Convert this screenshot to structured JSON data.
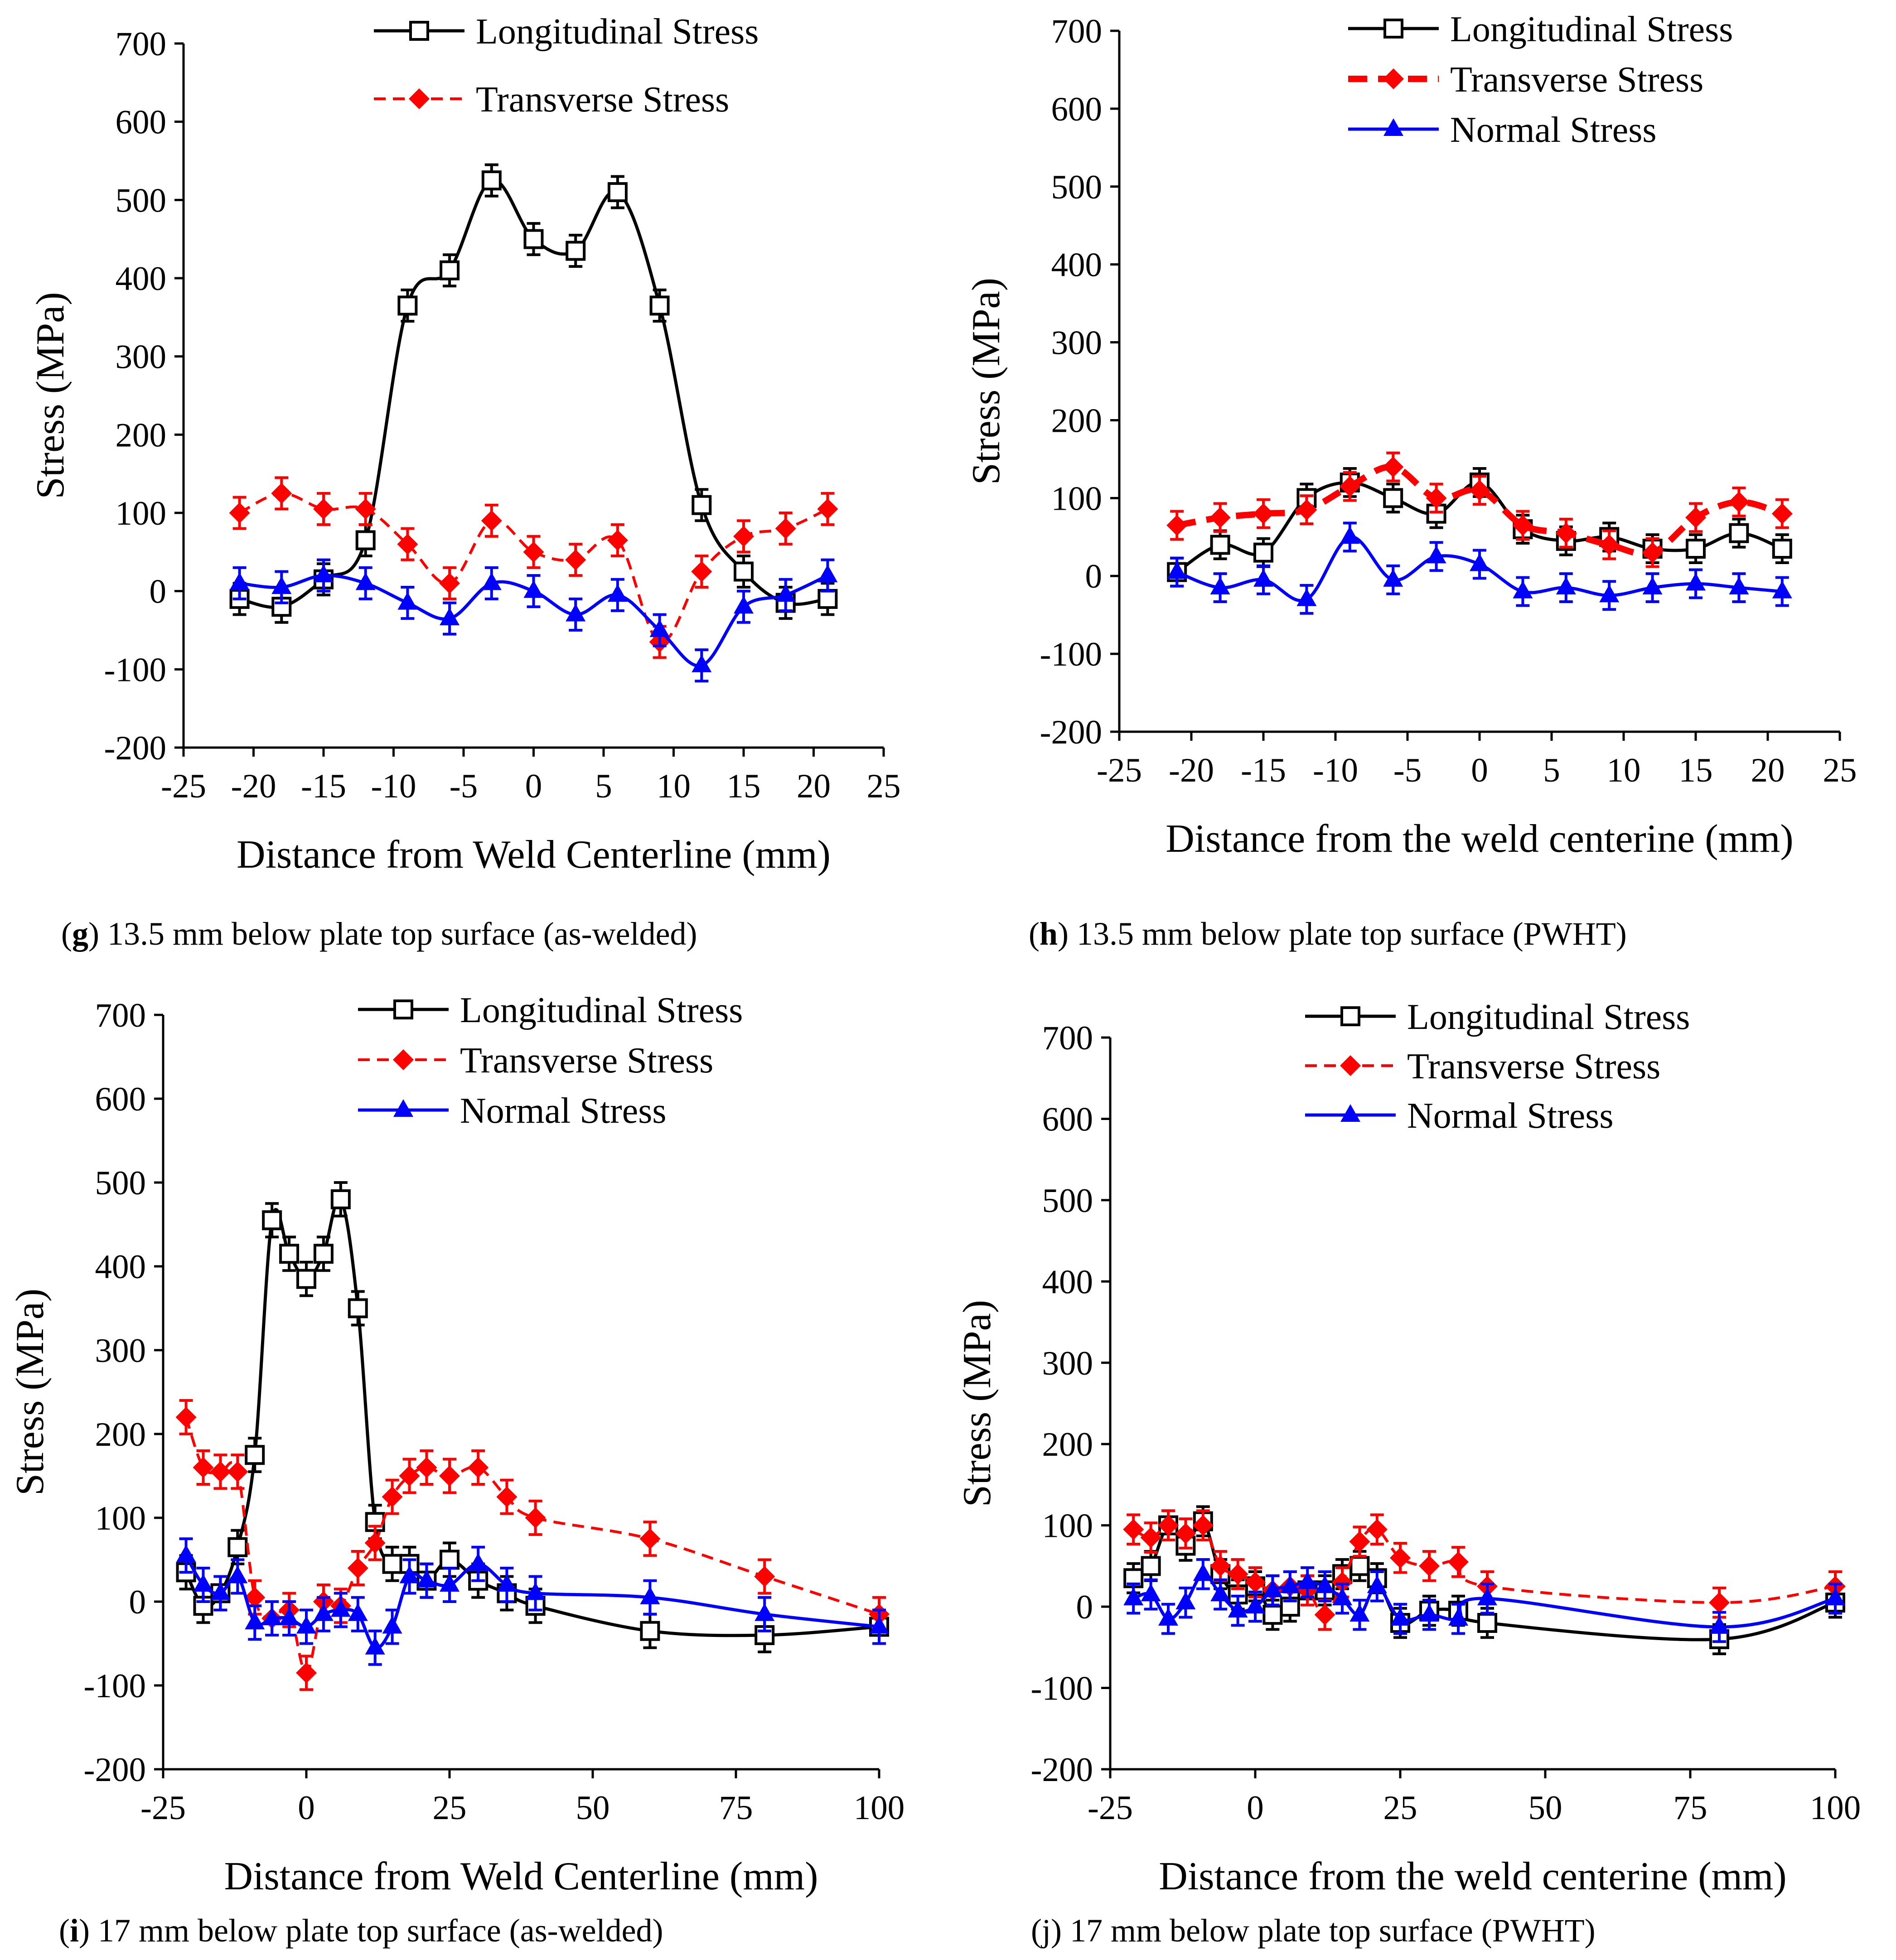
{
  "colors": {
    "longitudinal": "#000000",
    "transverse": "#ff0000",
    "normal": "#0000ff",
    "axis": "#000000",
    "background": "#ffffff"
  },
  "chart_data": [
    {
      "id": "g",
      "type": "line",
      "caption_letter": "g",
      "caption_text": ") 13.5 mm below plate top surface (as-welded)",
      "xlabel": "Distance from Weld Centerline (mm)",
      "ylabel": "Stress (MPa)",
      "xlim": [
        -25,
        25
      ],
      "ylim": [
        -200,
        700
      ],
      "xticks": [
        -25,
        -20,
        -15,
        -10,
        -5,
        0,
        5,
        10,
        15,
        20,
        25
      ],
      "yticks": [
        -200,
        -100,
        0,
        100,
        200,
        300,
        400,
        500,
        600,
        700
      ],
      "legend_position": "top-right",
      "series": [
        {
          "name": "Longitudinal Stress",
          "style": "longitudinal",
          "x": [
            -21,
            -18,
            -15,
            -12,
            -9,
            -6,
            -3,
            0,
            3,
            6,
            9,
            12,
            15,
            18,
            21
          ],
          "y": [
            -10,
            -20,
            15,
            65,
            365,
            410,
            525,
            450,
            435,
            510,
            365,
            110,
            25,
            -15,
            -10
          ],
          "err": 20
        },
        {
          "name": "Transverse Stress",
          "style": "transverse",
          "x": [
            -21,
            -18,
            -15,
            -12,
            -9,
            -6,
            -3,
            0,
            3,
            6,
            9,
            12,
            15,
            18,
            21
          ],
          "y": [
            100,
            125,
            105,
            105,
            60,
            10,
            90,
            50,
            40,
            65,
            -65,
            25,
            70,
            80,
            105
          ],
          "err": 20
        },
        {
          "name": "Normal Stress",
          "style": "normal",
          "in_legend": false,
          "x": [
            -21,
            -18,
            -15,
            -12,
            -9,
            -6,
            -3,
            0,
            3,
            6,
            9,
            12,
            15,
            18,
            21
          ],
          "y": [
            10,
            5,
            20,
            10,
            -15,
            -35,
            10,
            0,
            -30,
            -5,
            -50,
            -95,
            -20,
            -5,
            20
          ],
          "err": 20
        }
      ]
    },
    {
      "id": "h",
      "type": "line",
      "caption_letter": "h",
      "caption_text": ") 13.5 mm below plate top surface (PWHT)",
      "xlabel": "Distance from the weld centerine (mm)",
      "ylabel": "Stress (MPa)",
      "xlim": [
        -25,
        25
      ],
      "ylim": [
        -200,
        700
      ],
      "xticks": [
        -25,
        -20,
        -15,
        -10,
        -5,
        0,
        5,
        10,
        15,
        20,
        25
      ],
      "yticks": [
        -200,
        -100,
        0,
        100,
        200,
        300,
        400,
        500,
        600,
        700
      ],
      "legend_position": "top-right",
      "series": [
        {
          "name": "Longitudinal Stress",
          "style": "longitudinal",
          "x": [
            -21,
            -18,
            -15,
            -12,
            -9,
            -6,
            -3,
            0,
            3,
            6,
            9,
            12,
            15,
            18,
            21
          ],
          "y": [
            5,
            40,
            30,
            100,
            120,
            100,
            80,
            120,
            60,
            45,
            50,
            35,
            35,
            55,
            35
          ],
          "err": 18
        },
        {
          "name": "Transverse Stress",
          "style": "transverse_bold",
          "x": [
            -21,
            -18,
            -15,
            -12,
            -9,
            -6,
            -3,
            0,
            3,
            6,
            9,
            12,
            15,
            18,
            21
          ],
          "y": [
            65,
            75,
            80,
            85,
            115,
            140,
            100,
            110,
            65,
            55,
            40,
            30,
            75,
            95,
            80
          ],
          "err": 18
        },
        {
          "name": "Normal Stress",
          "style": "normal",
          "x": [
            -21,
            -18,
            -15,
            -12,
            -9,
            -6,
            -3,
            0,
            3,
            6,
            9,
            12,
            15,
            18,
            21
          ],
          "y": [
            5,
            -15,
            -5,
            -30,
            50,
            -5,
            25,
            15,
            -20,
            -15,
            -25,
            -15,
            -10,
            -15,
            -20
          ],
          "err": 18
        }
      ]
    },
    {
      "id": "i",
      "type": "line",
      "caption_letter": "i",
      "caption_text": ") 17 mm below plate top surface (as-welded)",
      "xlabel": "Distance from Weld Centerline (mm)",
      "ylabel": "Stress (MPa)",
      "xlim": [
        -25,
        100
      ],
      "ylim": [
        -200,
        700
      ],
      "xticks": [
        -25,
        0,
        25,
        50,
        75,
        100
      ],
      "yticks": [
        -200,
        -100,
        0,
        100,
        200,
        300,
        400,
        500,
        600,
        700
      ],
      "legend_position": "top-right",
      "series": [
        {
          "name": "Longitudinal Stress",
          "style": "longitudinal",
          "x": [
            -21,
            -18,
            -15,
            -12,
            -9,
            -6,
            -3,
            0,
            3,
            6,
            9,
            12,
            15,
            18,
            21,
            25,
            30,
            35,
            40,
            60,
            80,
            100
          ],
          "y": [
            35,
            -5,
            10,
            65,
            175,
            455,
            415,
            385,
            415,
            480,
            350,
            95,
            45,
            45,
            25,
            50,
            25,
            10,
            -5,
            -35,
            -40,
            -30
          ],
          "err": 20
        },
        {
          "name": "Transverse Stress",
          "style": "transverse",
          "x": [
            -21,
            -18,
            -15,
            -12,
            -9,
            -6,
            -3,
            0,
            3,
            6,
            9,
            12,
            15,
            18,
            21,
            25,
            30,
            35,
            40,
            60,
            80,
            100
          ],
          "y": [
            220,
            160,
            155,
            155,
            5,
            -20,
            -10,
            -85,
            0,
            -5,
            40,
            70,
            125,
            150,
            160,
            150,
            160,
            125,
            100,
            75,
            30,
            -15
          ],
          "err": 20
        },
        {
          "name": "Normal Stress",
          "style": "normal",
          "x": [
            -21,
            -18,
            -15,
            -12,
            -9,
            -6,
            -3,
            0,
            3,
            6,
            9,
            12,
            15,
            18,
            21,
            25,
            30,
            35,
            40,
            60,
            80,
            100
          ],
          "y": [
            55,
            20,
            10,
            30,
            -25,
            -20,
            -20,
            -30,
            -15,
            -10,
            -15,
            -55,
            -30,
            30,
            25,
            20,
            45,
            20,
            10,
            5,
            -15,
            -30
          ],
          "err": 20
        }
      ]
    },
    {
      "id": "j",
      "type": "line",
      "caption_letter": "",
      "caption_text": "(j) 17 mm below plate top surface (PWHT)",
      "xlabel": "Distance from the weld centerine (mm)",
      "ylabel": "Stress (MPa)",
      "xlim": [
        -25,
        100
      ],
      "ylim": [
        -200,
        700
      ],
      "xticks": [
        -25,
        0,
        25,
        50,
        75,
        100
      ],
      "yticks": [
        -200,
        -100,
        0,
        100,
        200,
        300,
        400,
        500,
        600,
        700
      ],
      "legend_position": "top-right",
      "series": [
        {
          "name": "Longitudinal Stress",
          "style": "longitudinal",
          "x": [
            -21,
            -18,
            -15,
            -12,
            -9,
            -6,
            -3,
            0,
            3,
            6,
            9,
            12,
            15,
            18,
            21,
            25,
            30,
            35,
            40,
            80,
            100
          ],
          "y": [
            35,
            50,
            100,
            75,
            105,
            40,
            15,
            25,
            -10,
            0,
            20,
            20,
            40,
            50,
            35,
            -20,
            -5,
            -5,
            -20,
            -40,
            5
          ],
          "err": 18
        },
        {
          "name": "Transverse Stress",
          "style": "transverse",
          "x": [
            -21,
            -18,
            -15,
            -12,
            -9,
            -6,
            -3,
            0,
            3,
            6,
            9,
            12,
            15,
            18,
            21,
            25,
            30,
            35,
            40,
            80,
            100
          ],
          "y": [
            95,
            85,
            100,
            90,
            100,
            50,
            40,
            30,
            20,
            25,
            20,
            -10,
            30,
            80,
            95,
            60,
            50,
            55,
            25,
            5,
            25
          ],
          "err": 18
        },
        {
          "name": "Normal Stress",
          "style": "normal",
          "x": [
            -21,
            -18,
            -15,
            -12,
            -9,
            -6,
            -3,
            0,
            3,
            6,
            9,
            12,
            15,
            18,
            21,
            25,
            30,
            35,
            40,
            80,
            100
          ],
          "y": [
            10,
            15,
            -15,
            5,
            40,
            15,
            -5,
            0,
            20,
            25,
            30,
            25,
            10,
            -10,
            25,
            -15,
            -10,
            -15,
            10,
            -25,
            10
          ],
          "err": 18
        }
      ]
    }
  ]
}
